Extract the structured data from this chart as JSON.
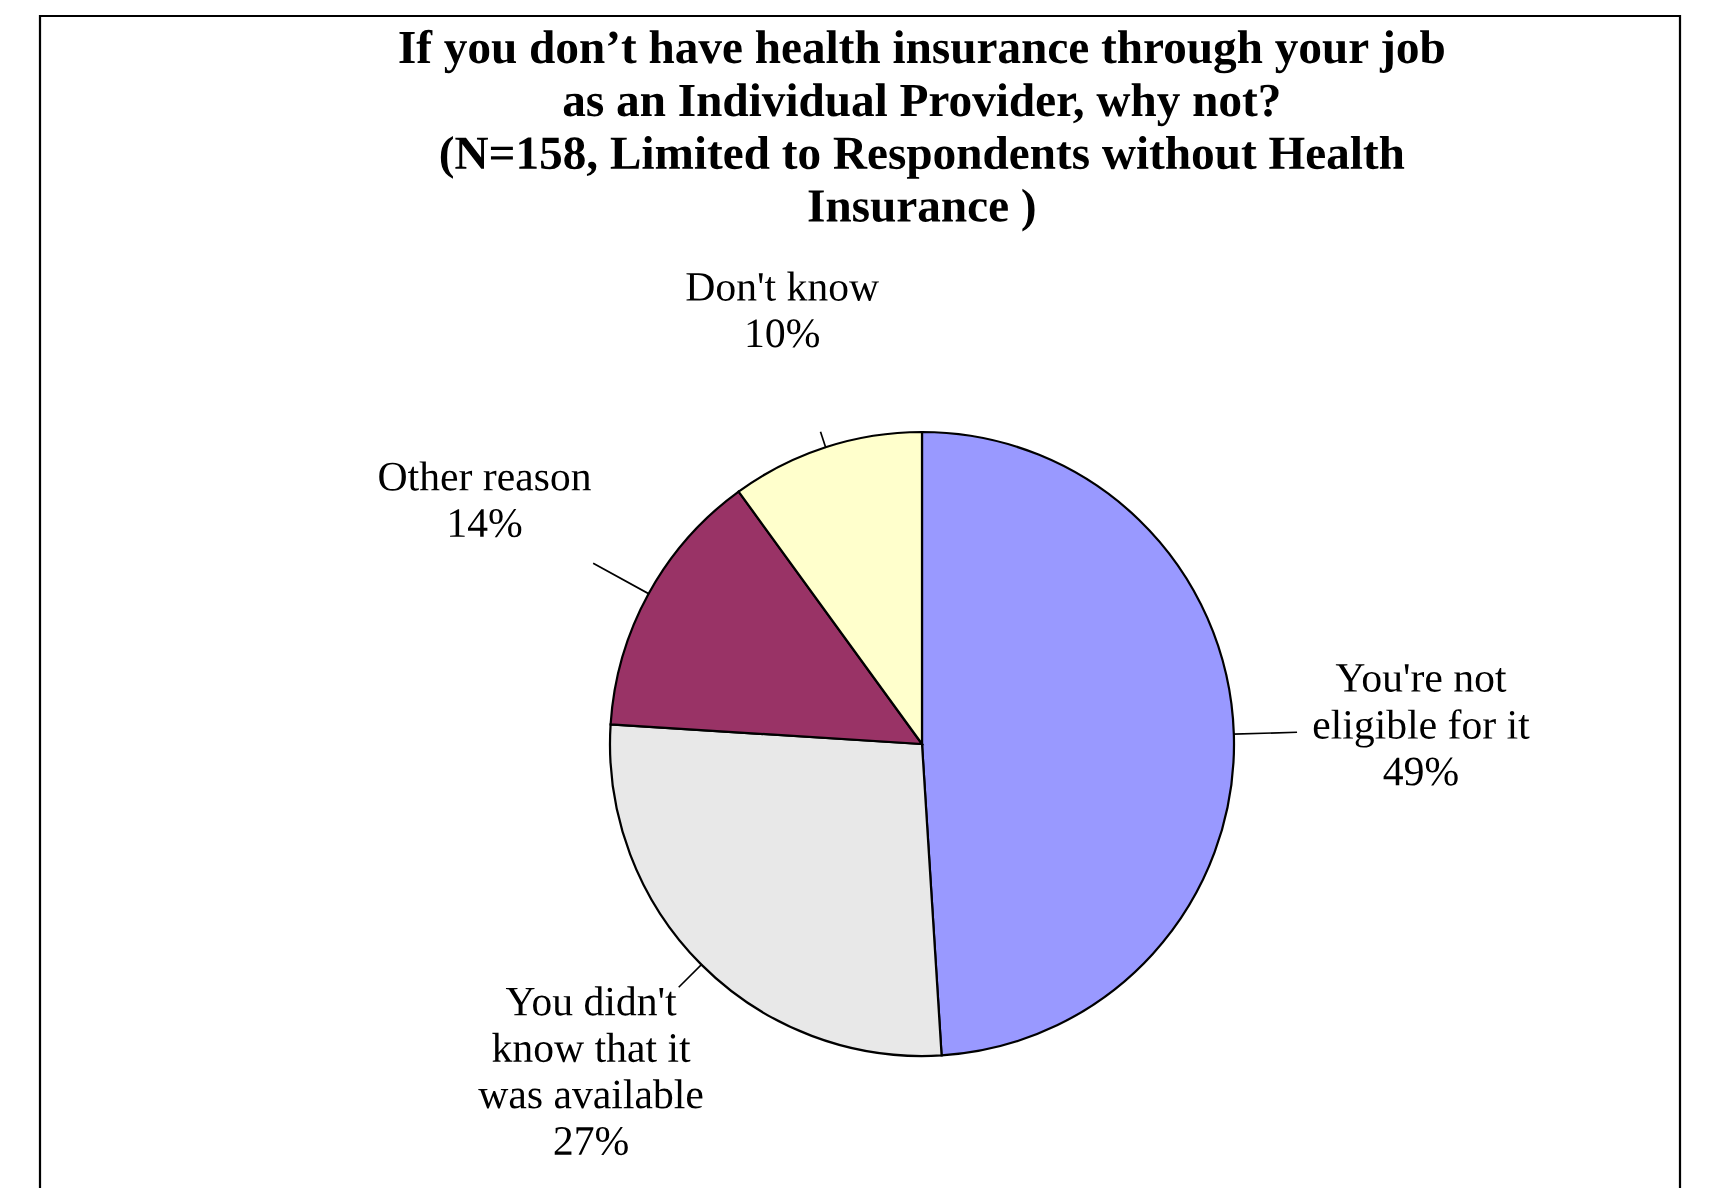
{
  "chart_data": {
    "type": "pie",
    "title": "If you don’t have health insurance through your job\nas an Individual Provider, why not?\n(N=158, Limited to Respondents without Health\nInsurance )",
    "categories": [
      "You're not\neligible for it",
      "You didn't\nknow that it\nwas available",
      "Other reason",
      "Don't know"
    ],
    "values": [
      49,
      27,
      14,
      10
    ],
    "value_labels": [
      "49%",
      "27%",
      "14%",
      "10%"
    ],
    "colors": [
      "#9999ff",
      "#e8e8e8",
      "#993366",
      "#ffffcc"
    ],
    "legend": false
  }
}
